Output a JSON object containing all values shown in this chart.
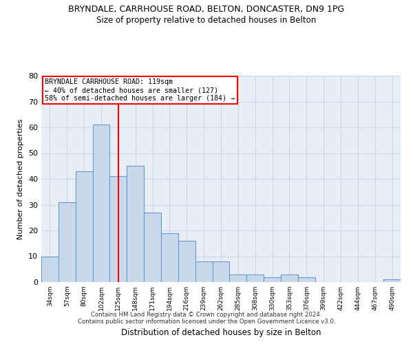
{
  "title1": "BRYNDALE, CARRHOUSE ROAD, BELTON, DONCASTER, DN9 1PG",
  "title2": "Size of property relative to detached houses in Belton",
  "xlabel": "Distribution of detached houses by size in Belton",
  "ylabel": "Number of detached properties",
  "bar_labels": [
    "34sqm",
    "57sqm",
    "80sqm",
    "102sqm",
    "125sqm",
    "148sqm",
    "171sqm",
    "194sqm",
    "216sqm",
    "239sqm",
    "262sqm",
    "285sqm",
    "308sqm",
    "330sqm",
    "353sqm",
    "376sqm",
    "399sqm",
    "422sqm",
    "444sqm",
    "467sqm",
    "490sqm"
  ],
  "bar_values": [
    10,
    31,
    43,
    61,
    41,
    45,
    27,
    19,
    16,
    8,
    8,
    3,
    3,
    2,
    3,
    2,
    0,
    0,
    0,
    0,
    1
  ],
  "bar_color": "#c9d9eb",
  "bar_edge_color": "#6699cc",
  "vline_x": 4.5,
  "vline_color": "red",
  "annotation_line0": "BRYNDALE CARRHOUSE ROAD: 119sqm",
  "annotation_line1": "← 40% of detached houses are smaller (127)",
  "annotation_line2": "58% of semi-detached houses are larger (184) →",
  "annotation_box_color": "white",
  "annotation_box_edge": "red",
  "grid_color": "#ccd8e8",
  "background_color": "#e8eef5",
  "footer1": "Contains HM Land Registry data © Crown copyright and database right 2024.",
  "footer2": "Contains public sector information licensed under the Open Government Licence v3.0.",
  "ylim": [
    0,
    80
  ],
  "yticks": [
    0,
    10,
    20,
    30,
    40,
    50,
    60,
    70,
    80
  ]
}
